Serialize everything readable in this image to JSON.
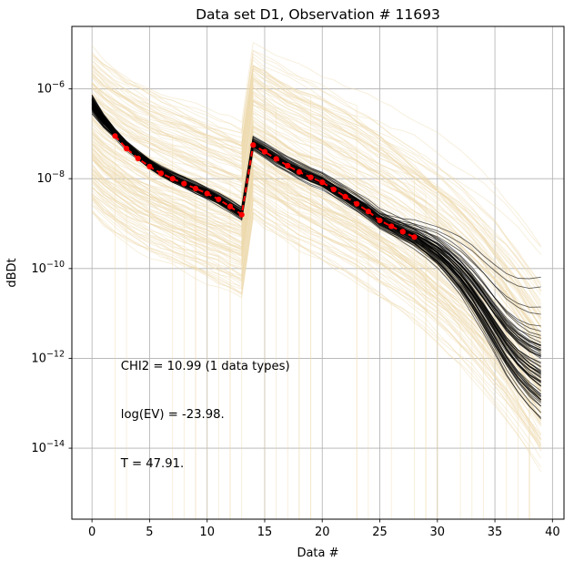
{
  "chart_data": {
    "type": "line",
    "title": "Data set D1, Observation # 11693",
    "xlabel": "Data #",
    "ylabel": "dBDt",
    "x_ticks": [
      0,
      5,
      10,
      15,
      20,
      25,
      30,
      35,
      40
    ],
    "y_ticks_exp": [
      -6,
      -8,
      -10,
      -12,
      -14
    ],
    "xlim": [
      -1.75,
      41.0
    ],
    "ylim_exp": [
      -15.58,
      -4.61
    ],
    "grid": true,
    "grid_color": "#b0b0b0",
    "legend": "none",
    "annotations": [
      {
        "text": "CHI2 = 10.99 (1 data types)",
        "x": 2.5,
        "y_exp": -12.25
      },
      {
        "text": "log(EV) = -23.98.",
        "x": 2.5,
        "y_exp": -13.33
      },
      {
        "text": "T = 47.91.",
        "x": 2.5,
        "y_exp": -14.42
      }
    ],
    "series": {
      "observed": {
        "label": "observed-data",
        "color": "#ff0000",
        "style": "dashed-line-with-dot-markers",
        "x": [
          2,
          3,
          4,
          5,
          6,
          7,
          8,
          9,
          10,
          11,
          12,
          13,
          14,
          15,
          16,
          17,
          18,
          19,
          20,
          21,
          22,
          23,
          24,
          25,
          26,
          27,
          28
        ],
        "y_exp": [
          -7.05,
          -7.33,
          -7.55,
          -7.73,
          -7.88,
          -8.0,
          -8.11,
          -8.22,
          -8.33,
          -8.46,
          -8.62,
          -8.8,
          -7.25,
          -7.4,
          -7.56,
          -7.71,
          -7.85,
          -7.97,
          -8.08,
          -8.24,
          -8.4,
          -8.56,
          -8.73,
          -8.93,
          -9.06,
          -9.18,
          -9.3
        ]
      },
      "posterior_ensemble": {
        "label": "posterior-model-ensemble",
        "color": "#000000",
        "opacity": 0.6,
        "count": 65,
        "x": [
          0,
          1,
          2,
          3,
          4,
          5,
          6,
          7,
          8,
          9,
          10,
          11,
          12,
          13,
          14,
          15,
          16,
          17,
          18,
          19,
          20,
          21,
          22,
          23,
          24,
          25,
          26,
          27,
          28,
          29,
          30,
          31,
          32,
          33,
          34,
          35,
          36,
          37,
          38,
          39
        ],
        "median_exp": [
          -6.35,
          -6.72,
          -7.0,
          -7.27,
          -7.49,
          -7.68,
          -7.84,
          -7.97,
          -8.09,
          -8.21,
          -8.33,
          -8.46,
          -8.62,
          -8.78,
          -7.22,
          -7.38,
          -7.54,
          -7.69,
          -7.83,
          -7.95,
          -8.06,
          -8.22,
          -8.38,
          -8.54,
          -8.71,
          -8.91,
          -9.04,
          -9.16,
          -9.28,
          -9.44,
          -9.62,
          -9.85,
          -10.12,
          -10.45,
          -10.82,
          -11.22,
          -11.6,
          -11.9,
          -12.12,
          -12.28
        ]
      },
      "prior_ensemble": {
        "label": "prior-model-ensemble",
        "color": "#EDD9AE",
        "opacity": 0.45,
        "count": 160,
        "x": [
          0,
          1,
          2,
          3,
          4,
          5,
          6,
          7,
          8,
          9,
          10,
          11,
          12,
          13,
          14,
          15,
          16,
          17,
          18,
          19,
          20,
          21,
          22,
          23,
          24,
          25,
          26,
          27,
          28,
          29,
          30,
          31,
          32,
          33,
          34,
          35,
          36,
          37,
          38,
          39
        ],
        "median_exp": [
          -6.9,
          -7.15,
          -7.35,
          -7.52,
          -7.67,
          -7.8,
          -7.92,
          -8.03,
          -8.14,
          -8.25,
          -8.36,
          -8.47,
          -8.58,
          -8.7,
          -6.95,
          -7.12,
          -7.28,
          -7.43,
          -7.57,
          -7.7,
          -7.83,
          -7.97,
          -8.11,
          -8.26,
          -8.42,
          -8.58,
          -8.75,
          -8.93,
          -9.12,
          -9.32,
          -9.53,
          -9.76,
          -10.0,
          -10.26,
          -10.54,
          -10.84,
          -11.16,
          -11.5,
          -11.86,
          -12.24
        ]
      }
    }
  }
}
